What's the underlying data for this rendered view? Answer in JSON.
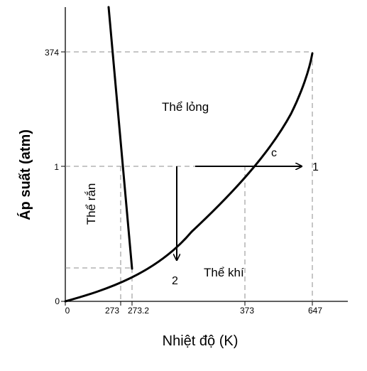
{
  "axes": {
    "x_label": "Nhiệt độ (K)",
    "y_label": "Áp suất (atm)",
    "x_ticks": [
      "0",
      "273",
      "273.2",
      "373",
      "647"
    ],
    "y_ticks": [
      "374",
      "1",
      "0"
    ]
  },
  "regions": {
    "liquid": "Thể lỏng",
    "solid": "Thể rắn",
    "gas": "Thể khí"
  },
  "markers": {
    "arrow_right": "1",
    "arrow_down": "2",
    "crossing": "c"
  }
}
